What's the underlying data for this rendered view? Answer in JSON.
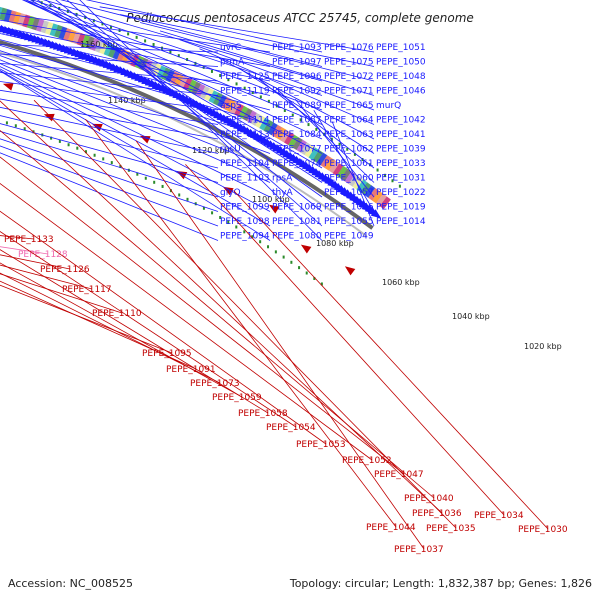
{
  "title": "Pediococcus pentosaceus ATCC 25745, complete genome",
  "footer": {
    "accession": "Accession: NC_008525",
    "stats": "Topology: circular; Length: 1,832,387 bp; Genes: 1,826"
  },
  "ticks": [
    "1160 kbp",
    "1140 kbp",
    "1120 kbp",
    "1100 kbp",
    "1080 kbp",
    "1060 kbp",
    "1040 kbp",
    "1020 kbp"
  ],
  "forward_labels": [
    "uvrC",
    "prmA",
    "PEPE_1125",
    "PEPE_1119",
    "aspS",
    "PEPE_1114",
    "PEPE_1113",
    "rpsU",
    "PEPE_1104",
    "PEPE_1103",
    "glyQ",
    "PEPE_1099",
    "PEPE_1098",
    "PEPE_1094",
    "PEPE_1093",
    "PEPE_1097",
    "PEPE_1096",
    "PEPE_1092",
    "PEPE_1089",
    "PEPE_1087",
    "PEPE_1084",
    "PEPE_1077",
    "PEPE_1074",
    "rpsA",
    "thyA",
    "PEPE_1069",
    "PEPE_1081",
    "PEPE_1080",
    "PEPE_1076",
    "PEPE_1075",
    "PEPE_1072",
    "PEPE_1071",
    "PEPE_1065",
    "PEPE_1064",
    "PEPE_1063",
    "PEPE_1062",
    "PEPE_1061",
    "PEPE_1060",
    "PEPE_1057",
    "PEPE_1056",
    "PEPE_1055",
    "PEPE_1049",
    "PEPE_1051",
    "PEPE_1050",
    "PEPE_1048",
    "PEPE_1046",
    "murQ",
    "PEPE_1042",
    "PEPE_1041",
    "PEPE_1039",
    "PEPE_1033",
    "PEPE_1031",
    "PEPE_1022",
    "PEPE_1019",
    "PEPE_1014"
  ],
  "reverse_labels": [
    "PEPE_1133",
    "PEPE_1128",
    "PEPE_1126",
    "PEPE_1117",
    "PEPE_1110",
    "PEPE_1095",
    "PEPE_1091",
    "PEPE_1073",
    "PEPE_1059",
    "PEPE_1058",
    "PEPE_1054",
    "PEPE_1053",
    "PEPE_1052",
    "PEPE_1047",
    "PEPE_1040",
    "PEPE_1036",
    "PEPE_1035",
    "PEPE_1044",
    "PEPE_1037",
    "PEPE_1034",
    "PEPE_1030"
  ],
  "colors": {
    "forward": "#1a1aff",
    "reverse": "#c00000",
    "pseudo": "#f06ab0",
    "backbone": "#666666",
    "gc_dots": "#2a8a2a"
  }
}
